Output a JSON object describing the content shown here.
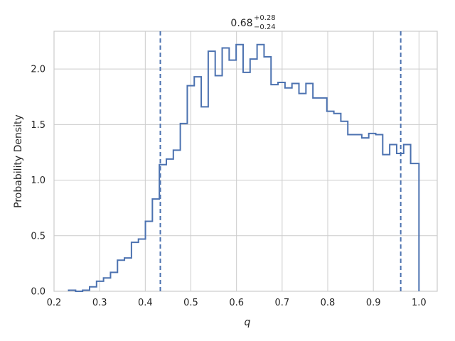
{
  "chart_data": {
    "type": "histogram",
    "title": {
      "median": "0.68",
      "upper": "+0.28",
      "lower": "−0.24"
    },
    "xlabel": "q",
    "ylabel": "Probability Density",
    "xlim": [
      0.2,
      1.04
    ],
    "ylim": [
      0.0,
      2.34
    ],
    "xticks": [
      0.2,
      0.3,
      0.4,
      0.5,
      0.6,
      0.7,
      0.8,
      0.9,
      1.0
    ],
    "xtick_labels": [
      "0.2",
      "0.3",
      "0.4",
      "0.5",
      "0.6",
      "0.7",
      "0.8",
      "0.9",
      "1.0"
    ],
    "yticks": [
      0.0,
      0.5,
      1.0,
      1.5,
      2.0
    ],
    "ytick_labels": [
      "0.0",
      "0.5",
      "1.0",
      "1.5",
      "2.0"
    ],
    "grid": true,
    "line_color": "#4c72b0",
    "grid_color": "#cccccc",
    "bin_edges": [
      0.232,
      0.2473,
      0.2626,
      0.2779,
      0.2932,
      0.3085,
      0.3238,
      0.3391,
      0.3544,
      0.3697,
      0.385,
      0.4003,
      0.4156,
      0.4309,
      0.4462,
      0.4615,
      0.4768,
      0.4921,
      0.5074,
      0.5227,
      0.538,
      0.5533,
      0.5686,
      0.5839,
      0.5992,
      0.6145,
      0.6298,
      0.6451,
      0.6604,
      0.6757,
      0.691,
      0.7063,
      0.7216,
      0.7369,
      0.7522,
      0.7675,
      0.7828,
      0.7981,
      0.8134,
      0.8287,
      0.844,
      0.8593,
      0.8746,
      0.8899,
      0.9052,
      0.9205,
      0.9358,
      0.9511,
      0.9664,
      0.9817,
      1.0
    ],
    "densities": [
      0.01,
      0.0,
      0.01,
      0.04,
      0.09,
      0.12,
      0.17,
      0.28,
      0.3,
      0.44,
      0.47,
      0.63,
      0.83,
      1.14,
      1.19,
      1.27,
      1.51,
      1.85,
      1.93,
      1.66,
      2.16,
      1.94,
      2.19,
      2.08,
      2.22,
      1.97,
      2.09,
      2.22,
      2.11,
      1.86,
      1.88,
      1.83,
      1.87,
      1.78,
      1.87,
      1.74,
      1.74,
      1.62,
      1.6,
      1.53,
      1.41,
      1.41,
      1.38,
      1.42,
      1.41,
      1.23,
      1.32,
      1.24,
      1.32,
      1.15
    ],
    "vlines": [
      0.433,
      0.96
    ]
  }
}
